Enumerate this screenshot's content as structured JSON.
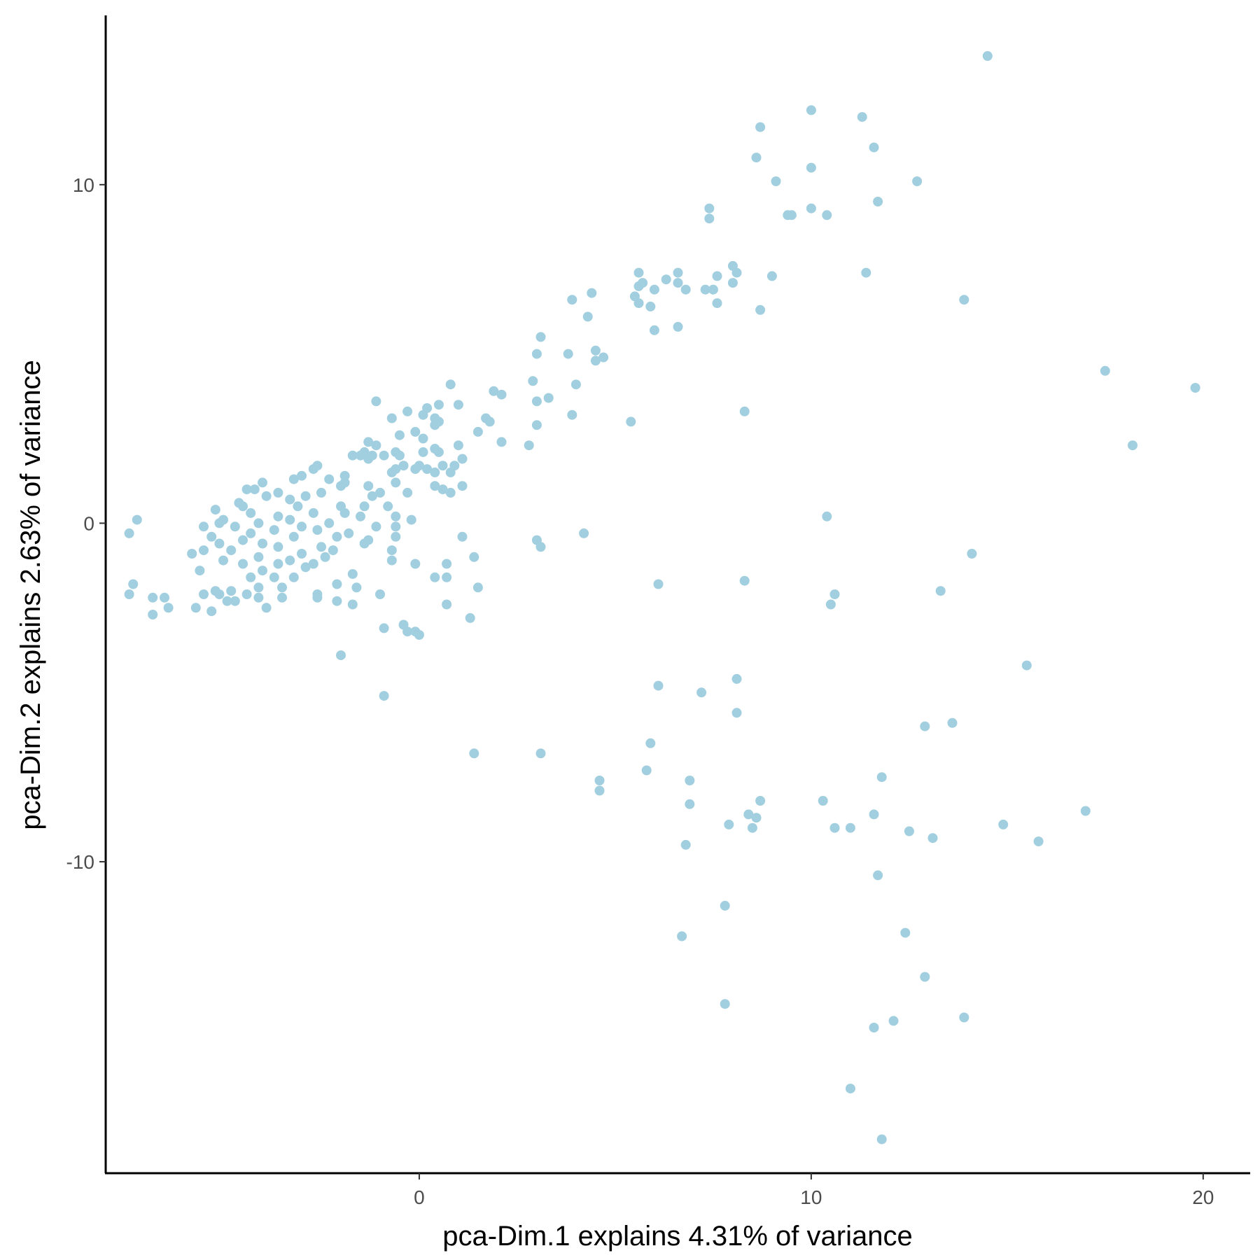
{
  "chart_data": {
    "type": "scatter",
    "xlabel": "pca-Dim.1 explains 4.31% of variance",
    "ylabel": "pca-Dim.2 explains 2.63% of variance",
    "xlim": [
      -8.0,
      21.2
    ],
    "ylim": [
      -19.2,
      15.0
    ],
    "xticks": [
      0,
      10,
      20
    ],
    "yticks": [
      10,
      0,
      -10
    ],
    "xtick_labels": [
      "0",
      "10",
      "20"
    ],
    "ytick_labels": [
      "10",
      "0",
      "-10"
    ],
    "point_color": "#A2CFDF",
    "grid": false,
    "legend": "none",
    "points": [
      [
        14.5,
        13.8
      ],
      [
        10.0,
        12.2
      ],
      [
        11.3,
        12.0
      ],
      [
        8.7,
        11.7
      ],
      [
        11.6,
        11.1
      ],
      [
        8.6,
        10.8
      ],
      [
        10.0,
        10.5
      ],
      [
        9.1,
        10.1
      ],
      [
        12.7,
        10.1
      ],
      [
        11.7,
        9.5
      ],
      [
        7.4,
        9.3
      ],
      [
        10.0,
        9.3
      ],
      [
        9.5,
        9.1
      ],
      [
        9.4,
        9.1
      ],
      [
        10.4,
        9.1
      ],
      [
        7.4,
        9.0
      ],
      [
        8.0,
        7.6
      ],
      [
        8.1,
        7.4
      ],
      [
        5.6,
        7.4
      ],
      [
        6.6,
        7.4
      ],
      [
        11.4,
        7.4
      ],
      [
        9.0,
        7.3
      ],
      [
        7.6,
        7.3
      ],
      [
        6.3,
        7.2
      ],
      [
        5.7,
        7.1
      ],
      [
        6.6,
        7.1
      ],
      [
        8.0,
        7.1
      ],
      [
        5.6,
        7.0
      ],
      [
        6.8,
        6.9
      ],
      [
        7.3,
        6.9
      ],
      [
        7.5,
        6.9
      ],
      [
        6.0,
        6.9
      ],
      [
        4.4,
        6.8
      ],
      [
        5.5,
        6.7
      ],
      [
        3.9,
        6.6
      ],
      [
        13.9,
        6.6
      ],
      [
        7.6,
        6.5
      ],
      [
        5.6,
        6.5
      ],
      [
        5.9,
        6.4
      ],
      [
        8.7,
        6.3
      ],
      [
        4.3,
        6.1
      ],
      [
        6.6,
        5.8
      ],
      [
        6.0,
        5.7
      ],
      [
        3.1,
        5.5
      ],
      [
        4.5,
        5.1
      ],
      [
        3.0,
        5.0
      ],
      [
        3.8,
        5.0
      ],
      [
        4.7,
        4.9
      ],
      [
        4.5,
        4.8
      ],
      [
        17.5,
        4.5
      ],
      [
        0.8,
        4.1
      ],
      [
        2.9,
        4.2
      ],
      [
        4.0,
        4.1
      ],
      [
        19.8,
        4.0
      ],
      [
        1.9,
        3.9
      ],
      [
        2.1,
        3.8
      ],
      [
        3.3,
        3.7
      ],
      [
        -1.1,
        3.6
      ],
      [
        3.0,
        3.6
      ],
      [
        1.0,
        3.5
      ],
      [
        0.5,
        3.5
      ],
      [
        0.2,
        3.4
      ],
      [
        -0.3,
        3.3
      ],
      [
        8.3,
        3.3
      ],
      [
        3.9,
        3.2
      ],
      [
        0.1,
        3.2
      ],
      [
        1.7,
        3.1
      ],
      [
        -0.7,
        3.1
      ],
      [
        0.4,
        3.1
      ],
      [
        0.5,
        3.0
      ],
      [
        1.8,
        3.0
      ],
      [
        5.4,
        3.0
      ],
      [
        3.0,
        2.9
      ],
      [
        0.4,
        2.9
      ],
      [
        1.5,
        2.7
      ],
      [
        -0.1,
        2.7
      ],
      [
        -0.5,
        2.6
      ],
      [
        0.1,
        2.5
      ],
      [
        2.1,
        2.4
      ],
      [
        -1.3,
        2.4
      ],
      [
        -1.1,
        2.3
      ],
      [
        2.8,
        2.3
      ],
      [
        18.2,
        2.3
      ],
      [
        1.0,
        2.3
      ],
      [
        0.4,
        2.2
      ],
      [
        0.1,
        2.1
      ],
      [
        -1.4,
        2.1
      ],
      [
        -0.6,
        2.1
      ],
      [
        0.5,
        2.1
      ],
      [
        -1.5,
        2.0
      ],
      [
        -0.5,
        2.0
      ],
      [
        -1.2,
        2.0
      ],
      [
        1.1,
        1.9
      ],
      [
        -1.7,
        2.0
      ],
      [
        -1.3,
        1.9
      ],
      [
        -0.9,
        2.0
      ],
      [
        0.0,
        1.7
      ],
      [
        0.6,
        1.7
      ],
      [
        0.9,
        1.7
      ],
      [
        -0.4,
        1.7
      ],
      [
        0.2,
        1.6
      ],
      [
        -2.7,
        1.6
      ],
      [
        -2.6,
        1.7
      ],
      [
        -0.6,
        1.6
      ],
      [
        -0.1,
        1.6
      ],
      [
        0.8,
        1.5
      ],
      [
        0.4,
        1.5
      ],
      [
        -0.7,
        1.5
      ],
      [
        -1.9,
        1.4
      ],
      [
        -2.3,
        1.3
      ],
      [
        -3.0,
        1.4
      ],
      [
        -3.2,
        1.3
      ],
      [
        -0.6,
        1.2
      ],
      [
        -4.0,
        1.2
      ],
      [
        -1.9,
        1.2
      ],
      [
        1.1,
        1.1
      ],
      [
        0.4,
        1.1
      ],
      [
        0.6,
        1.0
      ],
      [
        -4.2,
        1.0
      ],
      [
        -4.4,
        1.0
      ],
      [
        -3.6,
        0.9
      ],
      [
        -2.0,
        1.1
      ],
      [
        -1.3,
        1.1
      ],
      [
        -2.5,
        0.9
      ],
      [
        -3.9,
        0.8
      ],
      [
        0.8,
        0.9
      ],
      [
        -1.0,
        0.9
      ],
      [
        -2.9,
        0.8
      ],
      [
        -0.3,
        0.9
      ],
      [
        -1.2,
        0.8
      ],
      [
        -4.6,
        0.6
      ],
      [
        -3.3,
        0.7
      ],
      [
        -4.5,
        0.5
      ],
      [
        -3.1,
        0.5
      ],
      [
        -2.0,
        0.5
      ],
      [
        -1.4,
        0.5
      ],
      [
        -0.8,
        0.5
      ],
      [
        -2.7,
        0.3
      ],
      [
        -5.2,
        0.4
      ],
      [
        -1.9,
        0.3
      ],
      [
        -3.6,
        0.2
      ],
      [
        -4.3,
        0.3
      ],
      [
        -5.0,
        0.1
      ],
      [
        -1.5,
        0.2
      ],
      [
        -0.6,
        0.2
      ],
      [
        -3.3,
        0.1
      ],
      [
        -4.1,
        0.0
      ],
      [
        -2.3,
        0.0
      ],
      [
        -5.1,
        0.0
      ],
      [
        -0.2,
        0.1
      ],
      [
        -7.2,
        0.1
      ],
      [
        -3.0,
        -0.1
      ],
      [
        -4.7,
        -0.1
      ],
      [
        -1.1,
        -0.1
      ],
      [
        -5.5,
        -0.1
      ],
      [
        -2.6,
        -0.2
      ],
      [
        -3.7,
        -0.2
      ],
      [
        -0.6,
        -0.1
      ],
      [
        -1.8,
        -0.3
      ],
      [
        -4.3,
        -0.3
      ],
      [
        -7.4,
        -0.3
      ],
      [
        -5.3,
        -0.4
      ],
      [
        -2.1,
        -0.4
      ],
      [
        -3.2,
        -0.4
      ],
      [
        -1.3,
        -0.5
      ],
      [
        -4.5,
        -0.5
      ],
      [
        10.4,
        0.2
      ],
      [
        4.2,
        -0.3
      ],
      [
        1.1,
        -0.4
      ],
      [
        -0.6,
        -0.4
      ],
      [
        -4.0,
        -0.6
      ],
      [
        -5.1,
        -0.6
      ],
      [
        -1.4,
        -0.6
      ],
      [
        -2.5,
        -0.7
      ],
      [
        3.0,
        -0.5
      ],
      [
        3.1,
        -0.7
      ],
      [
        -3.6,
        -0.7
      ],
      [
        -4.8,
        -0.8
      ],
      [
        -5.5,
        -0.8
      ],
      [
        -2.2,
        -0.8
      ],
      [
        -0.7,
        -0.8
      ],
      [
        -3.0,
        -0.9
      ],
      [
        -5.8,
        -0.9
      ],
      [
        -4.1,
        -1.0
      ],
      [
        -2.4,
        -1.0
      ],
      [
        1.4,
        -1.0
      ],
      [
        14.1,
        -0.9
      ],
      [
        -3.3,
        -1.1
      ],
      [
        -5.0,
        -1.1
      ],
      [
        -0.7,
        -1.1
      ],
      [
        -4.5,
        -1.2
      ],
      [
        -0.1,
        -1.2
      ],
      [
        -2.7,
        -1.2
      ],
      [
        -3.6,
        -1.2
      ],
      [
        -5.6,
        -1.4
      ],
      [
        -4.0,
        -1.4
      ],
      [
        -2.9,
        -1.3
      ],
      [
        0.7,
        -1.2
      ],
      [
        -3.2,
        -1.6
      ],
      [
        -3.7,
        -1.6
      ],
      [
        -4.3,
        -1.6
      ],
      [
        -1.7,
        -1.5
      ],
      [
        0.4,
        -1.6
      ],
      [
        0.7,
        -1.6
      ],
      [
        -2.1,
        -1.8
      ],
      [
        -1.6,
        -1.9
      ],
      [
        -3.5,
        -1.9
      ],
      [
        -4.1,
        -1.9
      ],
      [
        -7.3,
        -1.8
      ],
      [
        6.1,
        -1.8
      ],
      [
        8.3,
        -1.7
      ],
      [
        -1.0,
        -2.1
      ],
      [
        1.5,
        -1.9
      ],
      [
        -4.8,
        -2.0
      ],
      [
        -5.2,
        -2.0
      ],
      [
        -4.4,
        -2.1
      ],
      [
        -5.1,
        -2.1
      ],
      [
        -3.5,
        -2.2
      ],
      [
        -2.6,
        -2.1
      ],
      [
        -2.6,
        -2.2
      ],
      [
        -7.4,
        -2.1
      ],
      [
        -4.7,
        -2.3
      ],
      [
        -4.1,
        -2.2
      ],
      [
        -6.5,
        -2.2
      ],
      [
        -4.9,
        -2.3
      ],
      [
        -5.5,
        -2.1
      ],
      [
        -6.8,
        -2.2
      ],
      [
        13.3,
        -2.0
      ],
      [
        10.6,
        -2.1
      ],
      [
        10.5,
        -2.4
      ],
      [
        -2.1,
        -2.3
      ],
      [
        -1.7,
        -2.4
      ],
      [
        0.7,
        -2.4
      ],
      [
        -3.9,
        -2.5
      ],
      [
        -6.4,
        -2.5
      ],
      [
        -5.3,
        -2.6
      ],
      [
        -6.8,
        -2.7
      ],
      [
        -5.7,
        -2.5
      ],
      [
        1.3,
        -2.8
      ],
      [
        -0.4,
        -3.0
      ],
      [
        -0.3,
        -3.2
      ],
      [
        -0.9,
        -3.1
      ],
      [
        -0.1,
        -3.2
      ],
      [
        0.0,
        -3.3
      ],
      [
        -2.0,
        -3.9
      ],
      [
        15.5,
        -4.2
      ],
      [
        8.1,
        -4.6
      ],
      [
        6.1,
        -4.8
      ],
      [
        7.2,
        -5.0
      ],
      [
        -0.9,
        -5.1
      ],
      [
        8.1,
        -5.6
      ],
      [
        13.6,
        -5.9
      ],
      [
        12.9,
        -6.0
      ],
      [
        5.9,
        -6.5
      ],
      [
        1.4,
        -6.8
      ],
      [
        3.1,
        -6.8
      ],
      [
        5.8,
        -7.3
      ],
      [
        4.6,
        -7.6
      ],
      [
        6.9,
        -7.6
      ],
      [
        11.8,
        -7.5
      ],
      [
        4.6,
        -7.9
      ],
      [
        8.7,
        -8.2
      ],
      [
        10.3,
        -8.2
      ],
      [
        6.9,
        -8.3
      ],
      [
        17.0,
        -8.5
      ],
      [
        8.4,
        -8.6
      ],
      [
        11.6,
        -8.6
      ],
      [
        8.6,
        -8.7
      ],
      [
        7.9,
        -8.9
      ],
      [
        8.5,
        -9.0
      ],
      [
        10.6,
        -9.0
      ],
      [
        11.0,
        -9.0
      ],
      [
        14.9,
        -8.9
      ],
      [
        12.5,
        -9.1
      ],
      [
        13.1,
        -9.3
      ],
      [
        15.8,
        -9.4
      ],
      [
        6.8,
        -9.5
      ],
      [
        11.7,
        -10.4
      ],
      [
        7.8,
        -11.3
      ],
      [
        12.4,
        -12.1
      ],
      [
        6.7,
        -12.2
      ],
      [
        12.9,
        -13.4
      ],
      [
        7.8,
        -14.2
      ],
      [
        13.9,
        -14.6
      ],
      [
        12.1,
        -14.7
      ],
      [
        11.6,
        -14.9
      ],
      [
        11.0,
        -16.7
      ],
      [
        11.8,
        -18.2
      ]
    ]
  }
}
